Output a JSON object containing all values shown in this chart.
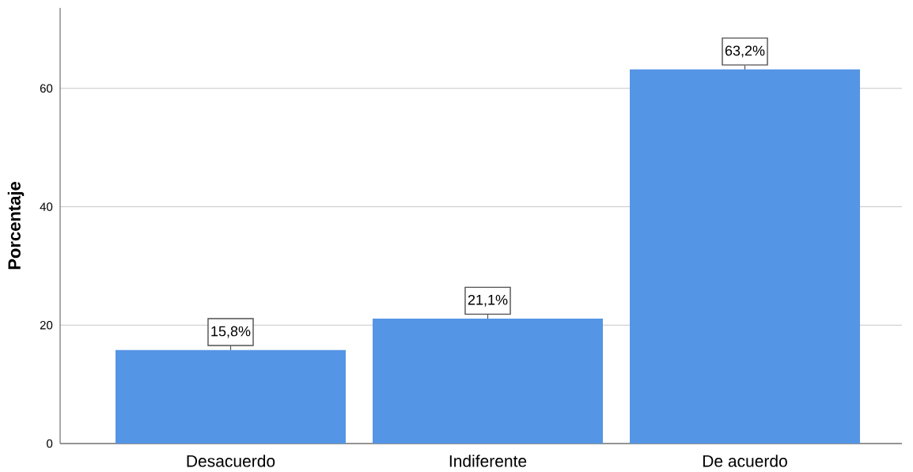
{
  "chart_data": {
    "type": "bar",
    "ylabel": "Porcentaje",
    "categories": [
      "Desacuerdo",
      "Indiferente",
      "De acuerdo"
    ],
    "values": [
      15.8,
      21.1,
      63.2
    ],
    "value_labels": [
      "15,8%",
      "21,1%",
      "63,2%"
    ],
    "color": "#5595e5",
    "ylim": [
      0,
      73.6
    ],
    "yticks": [
      0,
      20,
      40,
      60
    ],
    "grid": "y"
  }
}
